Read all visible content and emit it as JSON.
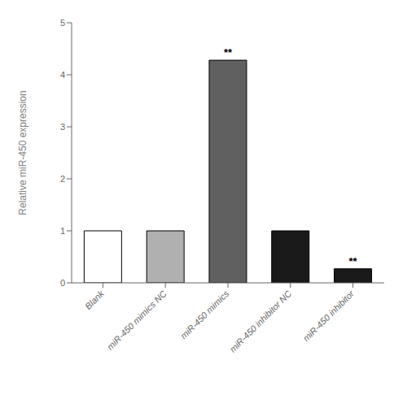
{
  "chart_data": {
    "type": "bar",
    "categories": [
      "Blank",
      "miR-450 mimics NC",
      "miR-450 mimics",
      "miR-450 inhibitor NC",
      "miR-450 inhibitor"
    ],
    "values": [
      1.0,
      1.0,
      4.28,
      1.0,
      0.27
    ],
    "colors": [
      "#ffffff",
      "#b0b0b0",
      "#606060",
      "#1a1a1a",
      "#1a1a1a"
    ],
    "y_label": "Relative miR-450 expression",
    "ylim": [
      0,
      5
    ],
    "yticks": [
      0,
      1,
      2,
      3,
      4,
      5
    ],
    "annotations": [
      null,
      null,
      "**",
      null,
      "**"
    ],
    "grid": false
  }
}
